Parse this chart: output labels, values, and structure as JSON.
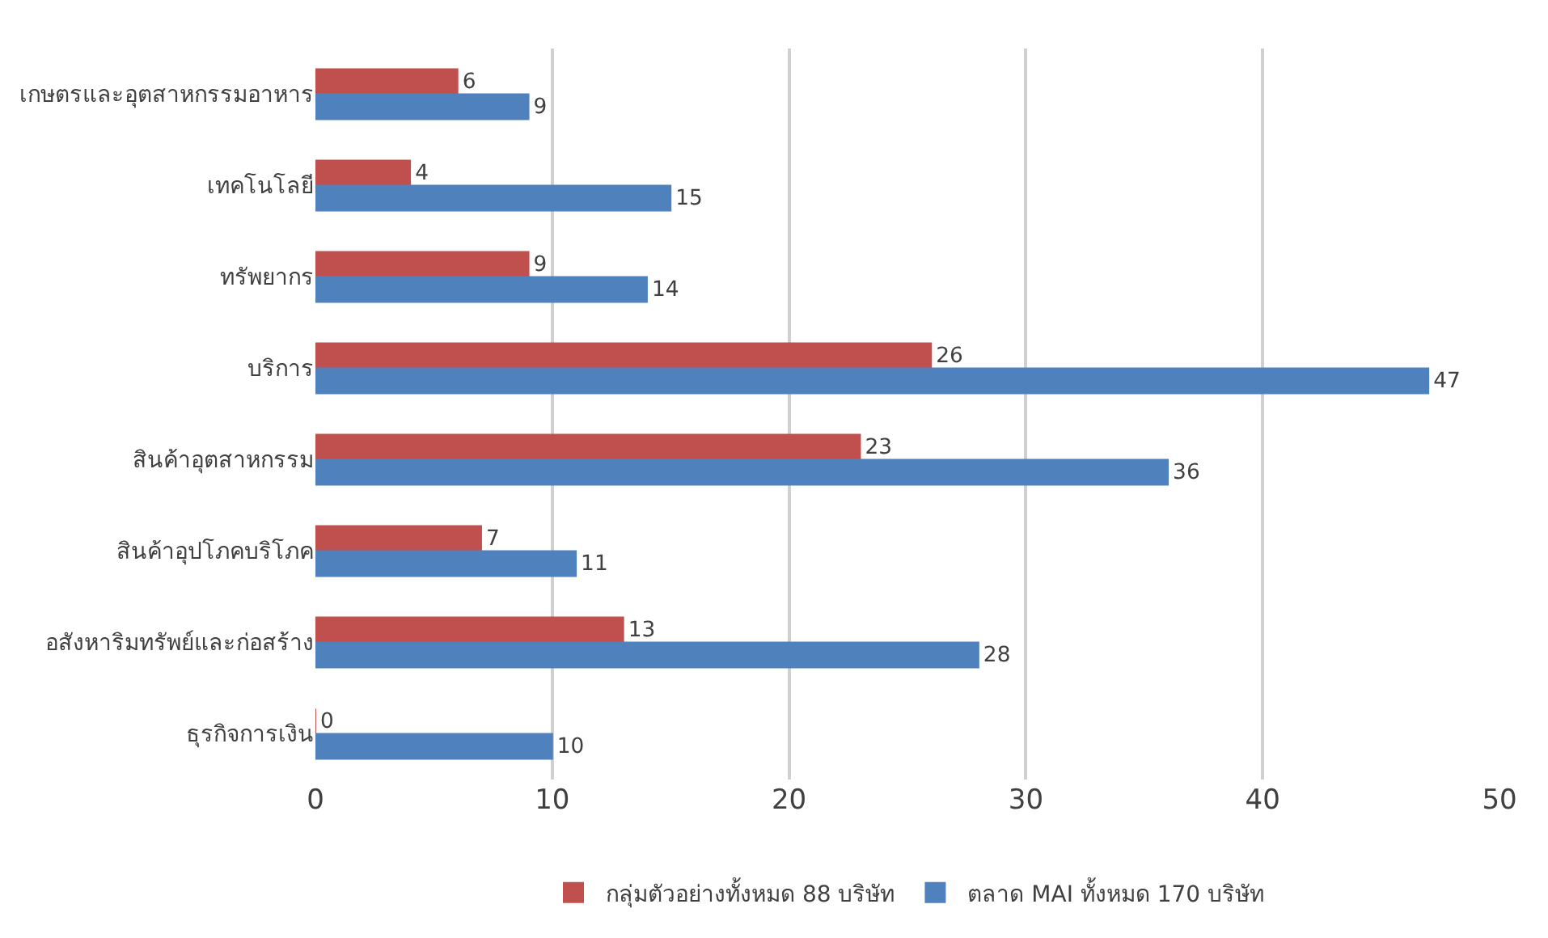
{
  "chart_data": {
    "type": "bar",
    "orientation": "horizontal",
    "categories": [
      "เกษตรและอุตสาหกรรมอาหาร",
      "เทคโนโลยี",
      "ทรัพยากร",
      "บริการ",
      "สินค้าอุตสาหกรรม",
      "สินค้าอุปโภคบริโภค",
      "อสังหาริมทรัพย์และก่อสร้าง",
      "ธุรกิจการเงิน"
    ],
    "series": [
      {
        "name": "กลุ่มตัวอย่างทั้งหมด 88 บริษัท",
        "color": "#c0504d",
        "values": [
          6,
          4,
          9,
          26,
          23,
          7,
          13,
          0
        ]
      },
      {
        "name": "ตลาด MAI ทั้งหมด 170 บริษัท",
        "color": "#4f81bd",
        "values": [
          9,
          15,
          14,
          47,
          36,
          11,
          28,
          10
        ]
      }
    ],
    "xlim": [
      0,
      50
    ],
    "xticks": [
      0,
      10,
      20,
      30,
      40,
      50
    ],
    "grid": "x",
    "legend": "bottom",
    "data_labels": true
  }
}
